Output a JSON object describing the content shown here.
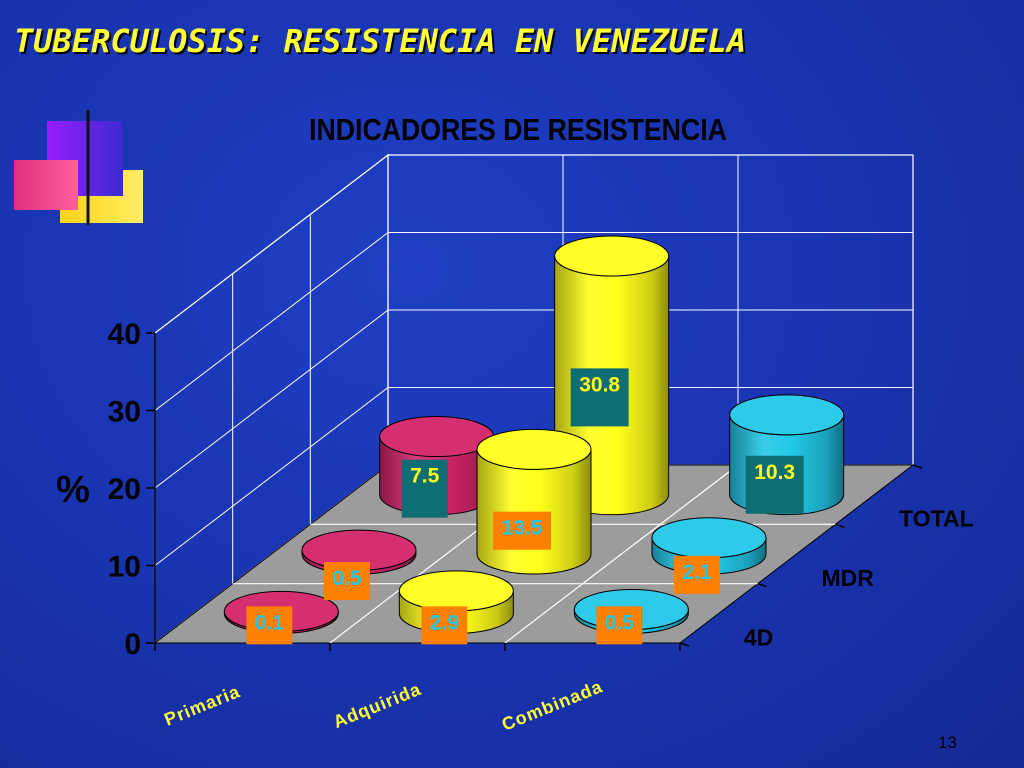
{
  "slide": {
    "title": "TUBERCULOSIS:  RESISTENCIA EN VENEZUELA",
    "page_number": "13"
  },
  "colors": {
    "background": "#1a35b3",
    "title": "#ffff33",
    "floor": "#9c9c9c",
    "primaria": "#d4246a",
    "adquirida": "#ffff1a",
    "combinada": "#22c8e8",
    "label_teal": "#0f6e73",
    "label_orange": "#ff7f00"
  },
  "chart_data": {
    "type": "bar",
    "style": "3d-cylinder",
    "title": "INDICADORES DE RESISTENCIA",
    "xlabel": "",
    "ylabel": "%",
    "ylim": [
      0,
      40
    ],
    "yticks": [
      "0",
      "10",
      "20",
      "30",
      "40"
    ],
    "grid": true,
    "categories": [
      "Primaria",
      "Adquirida",
      "Combinada"
    ],
    "series": [
      {
        "name": "TOTAL",
        "values": [
          7.5,
          30.8,
          10.3
        ]
      },
      {
        "name": "MDR",
        "values": [
          0.5,
          13.5,
          2.1
        ]
      },
      {
        "name": "4D",
        "values": [
          0.1,
          2.9,
          0.5
        ]
      }
    ],
    "data_labels": {
      "TOTAL": [
        "7.5",
        "30.8",
        "10.3"
      ],
      "MDR": [
        "0.5",
        "13.5",
        "2.1"
      ],
      "4D": [
        "0.1",
        "2.9",
        "0.5"
      ]
    }
  }
}
